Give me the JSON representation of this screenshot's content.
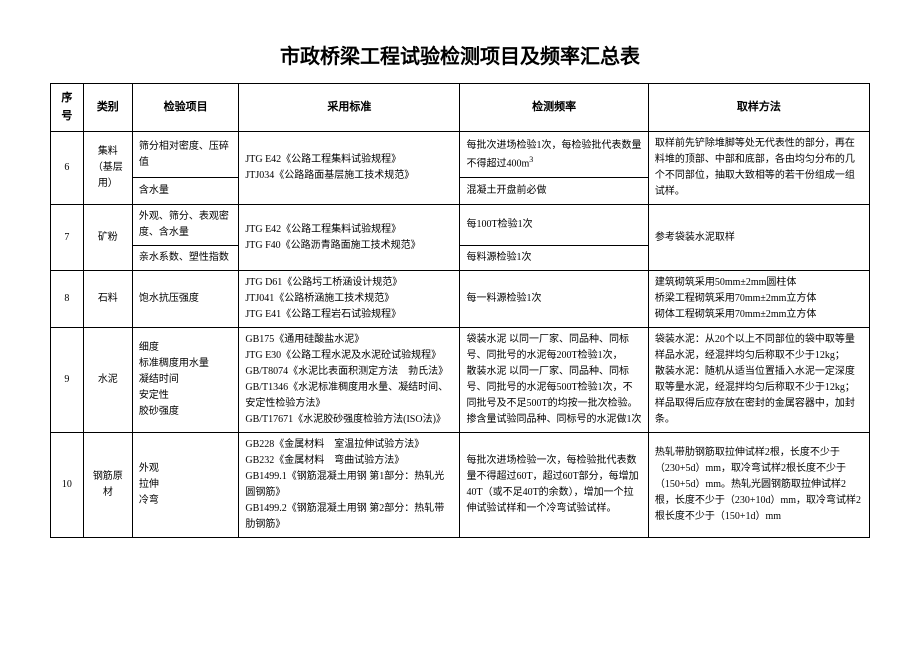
{
  "title": "市政桥梁工程试验检测项目及频率汇总表",
  "headers": {
    "seq": "序号",
    "category": "类别",
    "item": "检验项目",
    "standard": "采用标准",
    "frequency": "检测频率",
    "method": "取样方法"
  },
  "rows": {
    "r6": {
      "seq": "6",
      "category": "集料（基层用）",
      "item1": "筛分相对密度、压碎值",
      "item2": "含水量",
      "standard": "JTG E42《公路工程集料试验规程》\nJTJ034《公路路面基层施工技术规范》",
      "freq1": "每批次进场检验1次，每检验批代表数量不得超过400m³",
      "freq2": "混凝土开盘前必做",
      "method": "取样前先铲除堆脚等处无代表性的部分，再在料堆的顶部、中部和底部，各由均匀分布的几个不同部位，抽取大致相等的若干份组成一组试样。"
    },
    "r7": {
      "seq": "7",
      "category": "矿粉",
      "item1": "外观、筛分、表观密度、含水量",
      "item2": "亲水系数、塑性指数",
      "standard": "JTG E42《公路工程集料试验规程》\nJTG F40《公路沥青路面施工技术规范》",
      "freq1": "每100T检验1次",
      "freq2": "每料源检验1次",
      "method": "参考袋装水泥取样"
    },
    "r8": {
      "seq": "8",
      "category": "石料",
      "item": "饱水抗压强度",
      "standard": "JTG D61《公路圬工桥涵设计规范》\nJTJ041《公路桥涵施工技术规范》\nJTG E41《公路工程岩石试验规程》",
      "freq": "每一料源检验1次",
      "method": "建筑砌筑采用50mm±2mm圆柱体\n桥梁工程砌筑采用70mm±2mm立方体\n砌体工程砌筑采用70mm±2mm立方体"
    },
    "r9": {
      "seq": "9",
      "category": "水泥",
      "item": "细度\n标准稠度用水量\n凝结时间\n安定性\n胶砂强度",
      "standard": "GB175《通用硅酸盐水泥》\nJTG E30《公路工程水泥及水泥砼试验规程》\nGB/T8074《水泥比表面积测定方法　勃氏法》\nGB/T1346《水泥标准稠度用水量、凝结时间、安定性检验方法》\nGB/T17671《水泥胶砂强度检验方法(ISO法)》",
      "freq": "袋装水泥 以同一厂家、同品种、同标号、同批号的水泥每200T检验1次，\n散装水泥 以同一厂家、同品种、同标号、同批号的水泥每500T检验1次，不同批号及不足500T的均按一批次检验。\n掺含量试验同品种、同标号的水泥做1次",
      "method": "袋装水泥：从20个以上不同部位的袋中取等量样品水泥，经混拌均匀后称取不少于12kg；\n散装水泥：随机从适当位置插入水泥一定深度取等量水泥，经混拌均匀后称取不少于12kg；\n样品取得后应存放在密封的金属容器中，加封条。"
    },
    "r10": {
      "seq": "10",
      "category": "钢筋原材",
      "item": "外观\n拉伸\n冷弯",
      "standard": "GB228《金属材料　室温拉伸试验方法》\nGB232《金属材料　弯曲试验方法》\nGB1499.1《钢筋混凝土用钢 第1部分：热轧光圆钢筋》\nGB1499.2《钢筋混凝土用钢 第2部分：热轧带肋钢筋》",
      "freq": "每批次进场检验一次，每检验批代表数量不得超过60T，超过60T部分，每增加40T（或不足40T的余数），增加一个拉伸试验试样和一个冷弯试验试样。",
      "method": "热轧带肋钢筋取拉伸试样2根，长度不少于（230+5d）mm，取冷弯试样2根长度不少于（150+5d）mm。热轧光圆钢筋取拉伸试样2根，长度不少于（230+10d）mm，取冷弯试样2根长度不少于（150+1d）mm"
    }
  }
}
